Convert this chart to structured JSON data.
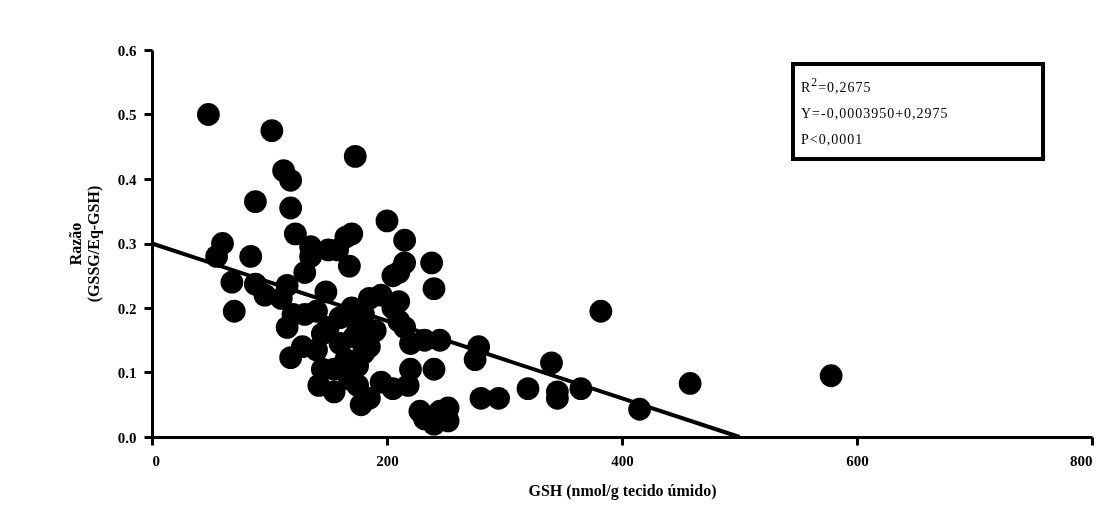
{
  "chart_data": {
    "type": "scatter",
    "xlabel": "GSH (nmol/g tecido úmido)",
    "ylabel": "Razão\n(GSSG/Eq-GSH)",
    "xlim": [
      0,
      800
    ],
    "xticks": [
      0,
      200,
      400,
      600,
      800
    ],
    "ylim": [
      0,
      0.6
    ],
    "yticks": [
      {
        "value": 0,
        "label": "0.0"
      },
      {
        "value": 0.1,
        "label": "0.1"
      },
      {
        "value": 0.2,
        "label": "0.2"
      },
      {
        "value": 0.3,
        "label": "0.3"
      },
      {
        "value": 0.4,
        "label": "0.4"
      },
      {
        "value": 0.5,
        "label": "0.5"
      },
      {
        "value": 0.6,
        "label": "0.6"
      }
    ],
    "grid": false,
    "series": [
      {
        "marker": "circle",
        "color": "#000000",
        "x": [
          48,
          102,
          112,
          173,
          118,
          88,
          118,
          122,
          60,
          55,
          84,
          88,
          68,
          96,
          70,
          110,
          115,
          118,
          115,
          130,
          135,
          135,
          150,
          158,
          165,
          170,
          168,
          200,
          215,
          215,
          205,
          210,
          238,
          240,
          245,
          240,
          232,
          228,
          232,
          240,
          245,
          252,
          252,
          278,
          275,
          280,
          295,
          320,
          340,
          345,
          345,
          365,
          382,
          415,
          458,
          578,
          130,
          140,
          145,
          150,
          160,
          170,
          175,
          180,
          185,
          195,
          190,
          205,
          210,
          210,
          215,
          220,
          220,
          218,
          205,
          195,
          185,
          178,
          175,
          168,
          175,
          180,
          165,
          160,
          155,
          145,
          142,
          155,
          140,
          148,
          128,
          120,
          185,
          172
        ],
        "values": [
          0.5,
          0.475,
          0.413,
          0.435,
          0.398,
          0.365,
          0.355,
          0.315,
          0.3,
          0.28,
          0.28,
          0.237,
          0.24,
          0.22,
          0.195,
          0.215,
          0.17,
          0.123,
          0.235,
          0.255,
          0.28,
          0.295,
          0.29,
          0.29,
          0.31,
          0.315,
          0.265,
          0.335,
          0.305,
          0.27,
          0.25,
          0.255,
          0.27,
          0.23,
          0.15,
          0.105,
          0.15,
          0.04,
          0.028,
          0.02,
          0.04,
          0.045,
          0.025,
          0.14,
          0.12,
          0.06,
          0.06,
          0.075,
          0.115,
          0.07,
          0.06,
          0.075,
          0.195,
          0.043,
          0.083,
          0.095,
          0.19,
          0.195,
          0.16,
          0.17,
          0.185,
          0.2,
          0.175,
          0.19,
          0.215,
          0.22,
          0.165,
          0.2,
          0.21,
          0.18,
          0.17,
          0.145,
          0.105,
          0.08,
          0.075,
          0.085,
          0.06,
          0.05,
          0.08,
          0.09,
          0.11,
          0.13,
          0.12,
          0.145,
          0.105,
          0.105,
          0.08,
          0.07,
          0.135,
          0.225,
          0.14,
          0.19,
          0.14,
          0.155
        ]
      },
      {
        "type": "line",
        "color": "#000000",
        "x": [
          0,
          500
        ],
        "values": [
          0.3,
          0
        ]
      }
    ],
    "annotations": [
      "R$^{2}$=0,2675",
      "Y=-0,0003950+0,2975",
      "P<0,0001"
    ]
  }
}
